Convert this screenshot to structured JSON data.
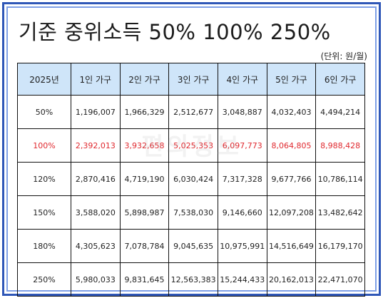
{
  "title": "기준 중위소득 50% 100% 250%",
  "unit": "(단위: 원/월)",
  "watermark": "편의정보",
  "colors": {
    "frame_border": "#2f57b7",
    "header_bg": "#cfe5f9",
    "highlight_text": "#e0292f"
  },
  "table": {
    "headers": [
      "2025년",
      "1인 가구",
      "2인 가구",
      "3인 가구",
      "4인 가구",
      "5인 가구",
      "6인 가구"
    ],
    "rows": [
      {
        "cells": [
          "50%",
          "1,196,007",
          "1,966,329",
          "2,512,677",
          "3,048,887",
          "4,032,403",
          "4,494,214"
        ]
      },
      {
        "cells": [
          "100%",
          "2,392,013",
          "3,932,658",
          "5,025,353",
          "6,097,773",
          "8,064,805",
          "8,988,428"
        ]
      },
      {
        "cells": [
          "120%",
          "2,870,416",
          "4,719,190",
          "6,030,424",
          "7,317,328",
          "9,677,766",
          "10,786,114"
        ]
      },
      {
        "cells": [
          "150%",
          "3,588,020",
          "5,898,987",
          "7,538,030",
          "9,146,660",
          "12,097,208",
          "13,482,642"
        ]
      },
      {
        "cells": [
          "180%",
          "4,305,623",
          "7,078,784",
          "9,045,635",
          "10,975,991",
          "14,516,649",
          "16,179,170"
        ]
      },
      {
        "cells": [
          "250%",
          "5,980,033",
          "9,831,645",
          "12,563,383",
          "15,244,433",
          "20,162,013",
          "22,471,070"
        ]
      }
    ]
  }
}
